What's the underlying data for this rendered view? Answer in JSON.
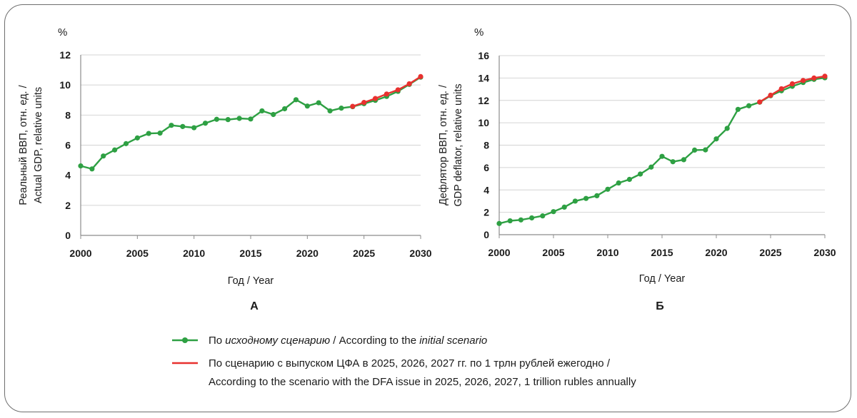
{
  "colors": {
    "initial": "#2ea043",
    "dfa": "#e8312f",
    "grid": "#d4d4d4",
    "axis": "#8c8c8c",
    "frame": "#6e6e6e"
  },
  "legend": {
    "initial": {
      "prefix": "По ",
      "italic": "исходному сценарию",
      "middle": " / According to the ",
      "italic2": "initial scenario"
    },
    "dfa_line1": "По сценарию с выпуском ЦФА в 2025, 2026, 2027 гг. по 1 трлн рублей ежегодно /",
    "dfa_line2": "According to the scenario with the DFA issue in 2025, 2026, 2027, 1 trillion rubles annually"
  },
  "chart_data": [
    {
      "type": "line",
      "panel_label": "А",
      "unit": "%",
      "ylabel_line1": "Реальный ВВП, отн. ед. /",
      "ylabel_line2": "Actual GDP, relative units",
      "xlabel": "Год / Year",
      "xlim": [
        2000,
        2030
      ],
      "ylim": [
        0,
        12
      ],
      "xticks": [
        2000,
        2005,
        2010,
        2015,
        2020,
        2025,
        2030
      ],
      "yticks": [
        0,
        2,
        4,
        6,
        8,
        10,
        12
      ],
      "grid": "horizontal",
      "series": [
        {
          "key": "initial",
          "x": [
            2000,
            2001,
            2002,
            2003,
            2004,
            2005,
            2006,
            2007,
            2008,
            2009,
            2010,
            2011,
            2012,
            2013,
            2014,
            2015,
            2016,
            2017,
            2018,
            2019,
            2020,
            2021,
            2022,
            2023,
            2024,
            2025,
            2026,
            2027,
            2028,
            2029,
            2030
          ],
          "y": [
            4.62,
            4.42,
            5.28,
            5.68,
            6.1,
            6.48,
            6.78,
            6.8,
            7.32,
            7.24,
            7.16,
            7.46,
            7.72,
            7.7,
            7.78,
            7.74,
            8.28,
            8.04,
            8.42,
            9.02,
            8.6,
            8.82,
            8.28,
            8.46,
            8.56,
            8.76,
            8.98,
            9.24,
            9.58,
            10.04,
            10.52
          ]
        },
        {
          "key": "dfa",
          "x": [
            2024,
            2025,
            2026,
            2027,
            2028,
            2029,
            2030
          ],
          "y": [
            8.58,
            8.84,
            9.1,
            9.4,
            9.68,
            10.08,
            10.56
          ]
        }
      ]
    },
    {
      "type": "line",
      "panel_label": "Б",
      "unit": "%",
      "ylabel_line1": "Дефлятор ВВП, отн. ед. /",
      "ylabel_line2": "GDP deflator, relative units",
      "xlabel": "Год / Year",
      "xlim": [
        2000,
        2030
      ],
      "ylim": [
        0,
        16
      ],
      "xticks": [
        2000,
        2005,
        2010,
        2015,
        2020,
        2025,
        2030
      ],
      "yticks": [
        0,
        2,
        4,
        6,
        8,
        10,
        12,
        14,
        16
      ],
      "grid": "horizontal",
      "series": [
        {
          "key": "initial",
          "x": [
            2000,
            2001,
            2002,
            2003,
            2004,
            2005,
            2006,
            2007,
            2008,
            2009,
            2010,
            2011,
            2012,
            2013,
            2014,
            2015,
            2016,
            2017,
            2018,
            2019,
            2020,
            2021,
            2022,
            2023,
            2024,
            2025,
            2026,
            2027,
            2028,
            2029,
            2030
          ],
          "y": [
            1.0,
            1.24,
            1.32,
            1.5,
            1.68,
            2.06,
            2.46,
            3.0,
            3.24,
            3.48,
            4.06,
            4.62,
            4.94,
            5.42,
            6.04,
            7.0,
            6.52,
            6.7,
            7.56,
            7.58,
            8.56,
            9.5,
            11.2,
            11.52,
            11.84,
            12.42,
            12.86,
            13.26,
            13.6,
            13.88,
            14.02
          ]
        },
        {
          "key": "dfa",
          "x": [
            2024,
            2025,
            2026,
            2027,
            2028,
            2029,
            2030
          ],
          "y": [
            11.86,
            12.46,
            13.04,
            13.48,
            13.78,
            14.0,
            14.16
          ]
        }
      ]
    }
  ]
}
